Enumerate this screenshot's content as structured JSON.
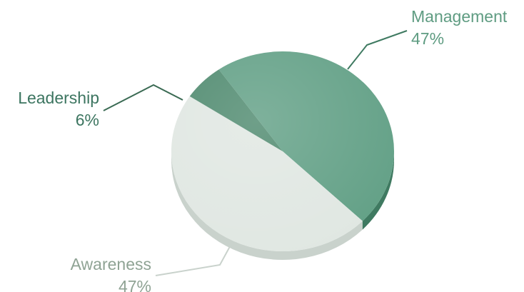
{
  "chart_data": {
    "type": "pie",
    "style": "3d",
    "title": "",
    "slices": [
      {
        "label": "Management",
        "value": 47,
        "display": "47%",
        "color": "#62a086",
        "side_color": "#3f7a61",
        "label_color": "#5f9c82"
      },
      {
        "label": "Awareness",
        "value": 47,
        "display": "47%",
        "color": "#e0e7e2",
        "side_color": "#c9d2cc",
        "label_color": "#8fa394"
      },
      {
        "label": "Leadership",
        "value": 6,
        "display": "6%",
        "color": "#4f8a6f",
        "side_color": "#3a6a53",
        "label_color": "#3c7560"
      }
    ],
    "legend": "none",
    "data_labels": "outside-with-leader-lines"
  }
}
